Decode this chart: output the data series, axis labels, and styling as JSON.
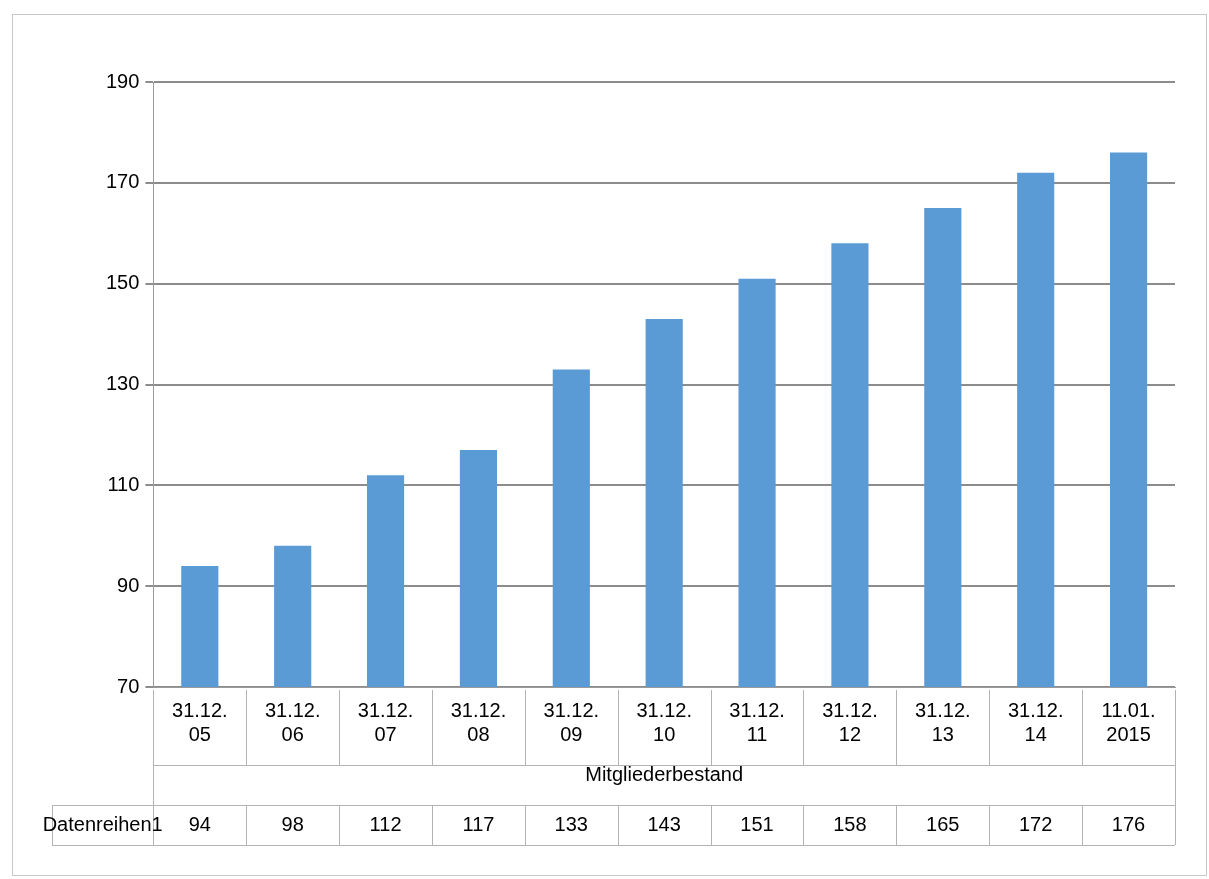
{
  "chart_data": {
    "type": "bar",
    "xlabel": "Mitgliederbestand",
    "categories": [
      "31.12. 05",
      "31.12. 06",
      "31.12. 07",
      "31.12. 08",
      "31.12. 09",
      "31.12. 10",
      "31.12. 11",
      "31.12. 12",
      "31.12. 13",
      "31.12. 14",
      "11.01. 2015"
    ],
    "series": [
      {
        "name": "Datenreihen1",
        "color": "#5b9bd5",
        "values": [
          94,
          98,
          112,
          117,
          133,
          143,
          151,
          158,
          165,
          172,
          176
        ]
      }
    ],
    "ylim": [
      70,
      190
    ],
    "yticks": [
      70,
      90,
      110,
      130,
      150,
      170,
      190
    ],
    "grid": "y",
    "legend": false,
    "data_labels": true
  }
}
